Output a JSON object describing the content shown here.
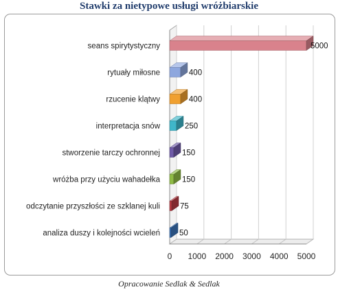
{
  "source": "Opracowanie Sedlak & Sedlak",
  "chart_data": {
    "type": "bar",
    "orientation": "horizontal",
    "title": "Stawki za nietypowe usługi wróżbiarskie",
    "categories": [
      "seans spirytystyczny",
      "rytuały miłosne",
      "rzucenie klątwy",
      "interpretacja snów",
      "stworzenie tarczy ochronnej",
      "wróżba przy użyciu wahadełka",
      "odczytanie przyszłości ze szklanej kuli",
      "analiza duszy i kolejności wcieleń"
    ],
    "values": [
      5000,
      400,
      400,
      250,
      150,
      150,
      75,
      50
    ],
    "colors": [
      "#d9828c",
      "#8ea7de",
      "#f0a030",
      "#3fb6c9",
      "#6f5aa8",
      "#8fbb45",
      "#b83b43",
      "#3a73b8"
    ],
    "xlim": [
      0,
      5000
    ],
    "xticks": [
      0,
      1000,
      2000,
      3000,
      4000,
      5000
    ],
    "grid": true,
    "style": "3d-cylinder-bars"
  }
}
